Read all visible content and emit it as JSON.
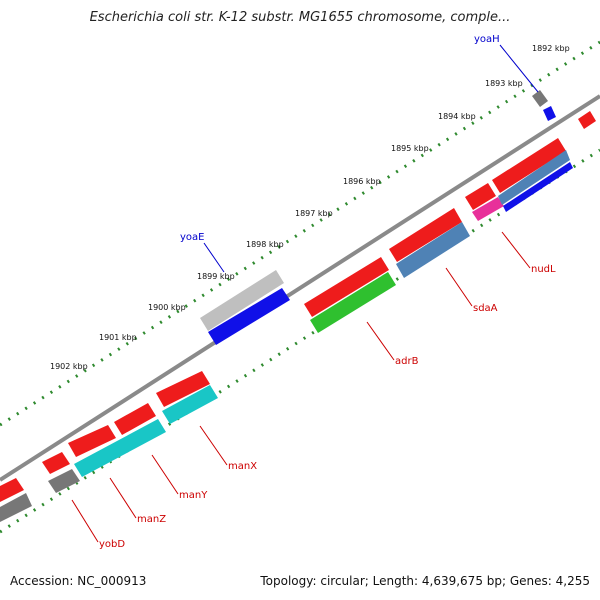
{
  "title": "Escherichia coli str. K-12 substr. MG1655 chromosome, comple...",
  "footer": {
    "accession": "Accession: NC_000913",
    "info": "Topology: circular; Length: 4,639,675 bp; Genes: 4,255"
  },
  "colors": {
    "backbone": "#8a8a8a",
    "tick": "#2f8a2f",
    "red_gene": "#ee1c1c",
    "blue_gene": "#1010e8",
    "gray_gene": "#777777",
    "light_gray_gene": "#bfbfbf",
    "green_gene": "#2fc02f",
    "steel_gene": "#4f82b5",
    "cyan_gene": "#19c6c6",
    "pink_gene": "#e8309a",
    "label_red": "#cc0000",
    "label_blue": "#0000cc"
  },
  "kbp_labels": [
    "1892 kbp",
    "1893 kbp",
    "1894 kbp",
    "1895 kbp",
    "1896 kbp",
    "1897 kbp",
    "1898 kbp",
    "1899 kbp",
    "1900 kbp",
    "1901 kbp",
    "1902 kbp"
  ],
  "gene_labels": [
    {
      "name": "yoaH",
      "color": "blue"
    },
    {
      "name": "yoaE",
      "color": "blue"
    },
    {
      "name": "nudL",
      "color": "red"
    },
    {
      "name": "sdaA",
      "color": "red"
    },
    {
      "name": "adrB",
      "color": "red"
    },
    {
      "name": "manX",
      "color": "red"
    },
    {
      "name": "manY",
      "color": "red"
    },
    {
      "name": "manZ",
      "color": "red"
    },
    {
      "name": "yobD",
      "color": "red"
    }
  ]
}
